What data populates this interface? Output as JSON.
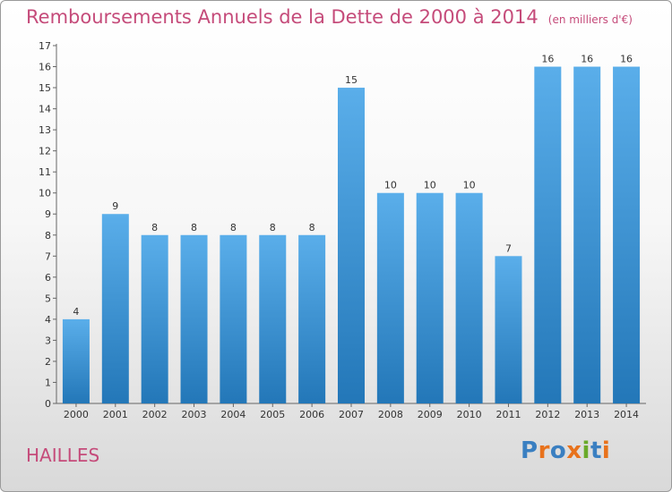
{
  "header": {
    "title": "Remboursements Annuels de la Dette de 2000 à 2014",
    "subtitle": "(en milliers d'€)"
  },
  "footer": {
    "commune": "HAILLES",
    "logo_text": "Proxiti"
  },
  "colors": {
    "title": "#c54b7a",
    "bar_light": "#5aaeea",
    "bar_dark": "#2377b8",
    "logo_letters": [
      "#3a7fc1",
      "#e8721c",
      "#3a7fc1",
      "#e8721c",
      "#6aaa2a",
      "#3a7fc1",
      "#e8721c"
    ]
  },
  "chart_data": {
    "type": "bar",
    "title": "Remboursements Annuels de la Dette de 2000 à 2014",
    "subtitle": "(en milliers d'€)",
    "categories": [
      "2000",
      "2001",
      "2002",
      "2003",
      "2004",
      "2005",
      "2006",
      "2007",
      "2008",
      "2009",
      "2010",
      "2011",
      "2012",
      "2013",
      "2014"
    ],
    "values": [
      4,
      9,
      8,
      8,
      8,
      8,
      8,
      15,
      10,
      10,
      10,
      7,
      16,
      16,
      16
    ],
    "ylim": [
      0,
      17
    ],
    "yticks": [
      "0",
      "1",
      "2",
      "3",
      "4",
      "5",
      "6",
      "7",
      "8",
      "9",
      "10",
      "11",
      "12",
      "13",
      "14",
      "15",
      "16",
      "17"
    ],
    "grid": false,
    "xlabel": "",
    "ylabel": ""
  }
}
